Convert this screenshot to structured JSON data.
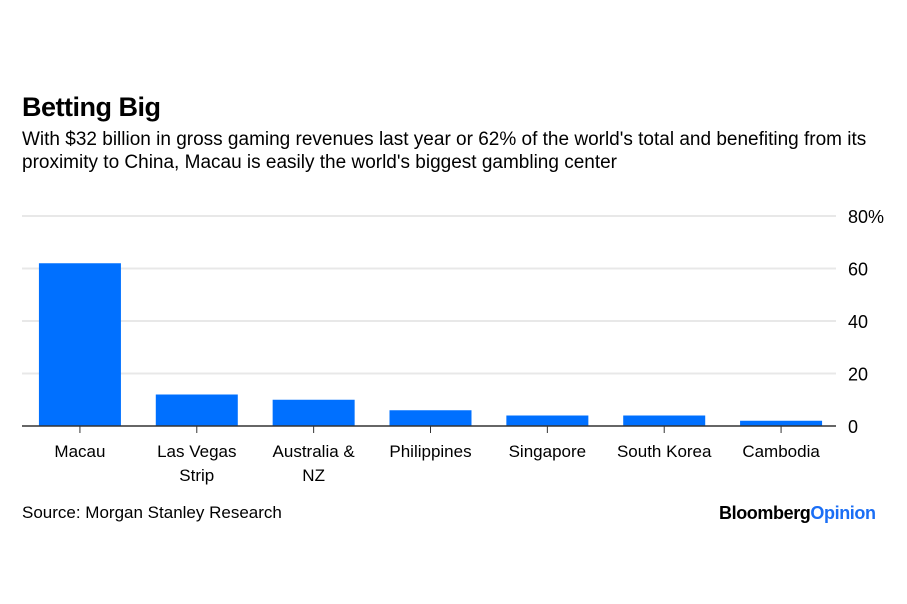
{
  "title": "Betting Big",
  "subtitle": "With $32 billion in gross gaming revenues last year or 62% of the world's total and benefiting from its proximity to China, Macau is easily the world's biggest gambling center",
  "source": "Source: Morgan Stanley Research",
  "logo": {
    "part1": "Bloomberg",
    "part2": "Opinion"
  },
  "colors": {
    "bar": "#0070ff",
    "logo_accent": "#1a6ef5",
    "grid": "#e8e8e8"
  },
  "chart_data": {
    "type": "bar",
    "categories": [
      "Macau",
      "Las Vegas Strip",
      "Australia & NZ",
      "Philippines",
      "Singapore",
      "South Korea",
      "Cambodia"
    ],
    "category_lines": [
      [
        "Macau"
      ],
      [
        "Las Vegas",
        "Strip"
      ],
      [
        "Australia &",
        "NZ"
      ],
      [
        "Philippines"
      ],
      [
        "Singapore"
      ],
      [
        "South Korea"
      ],
      [
        "Cambodia"
      ]
    ],
    "values": [
      62,
      12,
      10,
      6,
      4,
      4,
      2
    ],
    "ylim": [
      0,
      80
    ],
    "yticks": [
      0,
      20,
      40,
      60,
      80
    ],
    "ytick_labels": [
      "0",
      "20",
      "40",
      "60",
      "80%"
    ],
    "y_axis_side": "right",
    "grid": true
  }
}
